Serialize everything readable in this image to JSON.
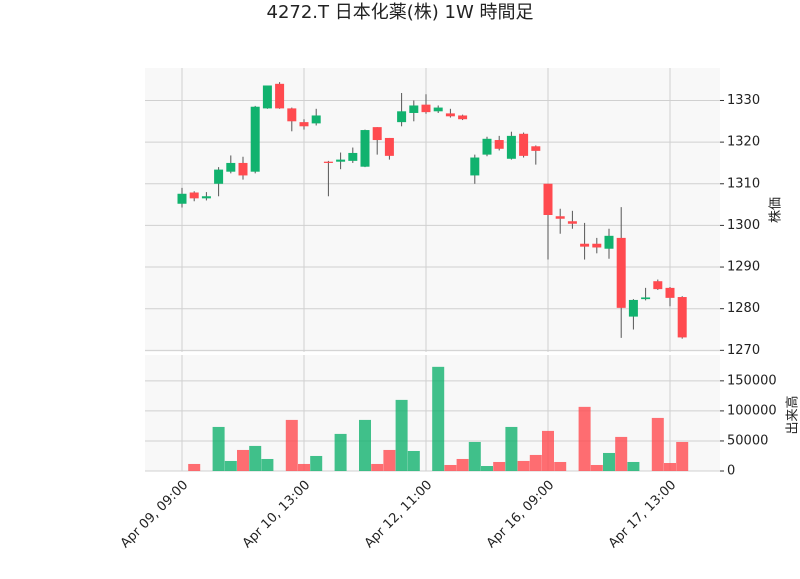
{
  "chart_data": {
    "type": "candlestick",
    "title": "4272.T 日本化薬(株) 1W 時間足",
    "categories": [
      "Apr 09, 09:00",
      null,
      null,
      null,
      null,
      null,
      null,
      null,
      null,
      null,
      "Apr 10, 13:00",
      null,
      null,
      null,
      null,
      null,
      null,
      null,
      null,
      null,
      "Apr 12, 11:00",
      null,
      null,
      null,
      null,
      null,
      null,
      null,
      null,
      null,
      "Apr 16, 09:00",
      null,
      null,
      null,
      null,
      null,
      null,
      null,
      null,
      null,
      "Apr 17, 13:00",
      null
    ],
    "open": [
      1305.2,
      1307.9,
      1306.5,
      1310,
      1312.9,
      1315,
      1312.9,
      1328.1,
      1334,
      1328.1,
      1324.8,
      1324.5,
      1315.3,
      1315.3,
      1315.5,
      1314.1,
      1323.6,
      1321,
      1324.8,
      1327,
      1329,
      1327.4,
      1326.9,
      1326.4,
      1312,
      1317,
      1320.5,
      1316,
      1322,
      1319,
      1310,
      1302.2,
      1301,
      1295.6,
      1295.6,
      1294.4,
      1297,
      1278.1,
      1282.3,
      1286.6,
      1285,
      1282.8
    ],
    "high": [
      1309,
      1308.2,
      1308,
      1314,
      1316.8,
      1316.5,
      1328.7,
      1333.6,
      1334.4,
      1328.3,
      1325.5,
      1328,
      1315.5,
      1317.5,
      1318.7,
      1323,
      1323.6,
      1321,
      1331.8,
      1330,
      1331.5,
      1328.8,
      1328,
      1326.6,
      1317,
      1321.3,
      1321.5,
      1322.5,
      1322.3,
      1319.2,
      1310,
      1304,
      1303.5,
      1300.6,
      1297,
      1299.2,
      1304.4,
      1282.3,
      1285,
      1287,
      1285.2,
      1283
    ],
    "low": [
      1304.3,
      1305.8,
      1306,
      1307,
      1312.5,
      1311,
      1312.5,
      1328,
      1328,
      1322.6,
      1323,
      1324,
      1307,
      1313.5,
      1315,
      1314,
      1317,
      1315.8,
      1323.8,
      1325,
      1326.8,
      1327,
      1325.9,
      1325.3,
      1310,
      1316.6,
      1318,
      1315.8,
      1316.3,
      1314.6,
      1291.8,
      1298,
      1299.2,
      1291.8,
      1293.3,
      1292,
      1273,
      1275,
      1282,
      1284.5,
      1280.6,
      1272.8
    ],
    "close": [
      1307.6,
      1306.5,
      1307,
      1313.4,
      1315,
      1312,
      1328.5,
      1333.6,
      1328.1,
      1325,
      1323.8,
      1326.4,
      1315,
      1315.8,
      1317.4,
      1322.9,
      1320.5,
      1316.7,
      1327.4,
      1328.8,
      1327.2,
      1328.3,
      1326.2,
      1325.5,
      1316.3,
      1320.8,
      1318.4,
      1321.5,
      1316.7,
      1317.9,
      1302.5,
      1301.6,
      1300.4,
      1294.9,
      1294.7,
      1297.5,
      1280.2,
      1282.1,
      1282.7,
      1284.7,
      1282.6,
      1273.1
    ],
    "volume": [
      0,
      11700,
      0,
      73300,
      16700,
      35000,
      41700,
      20000,
      0,
      85000,
      11700,
      25000,
      0,
      61700,
      0,
      85000,
      11700,
      35000,
      118300,
      33300,
      0,
      173300,
      10000,
      20000,
      48300,
      8300,
      15000,
      73300,
      16700,
      26700,
      66700,
      15000,
      0,
      106700,
      10000,
      30000,
      56700,
      15000,
      0,
      88300,
      13300,
      48300
    ],
    "up_color": "#11b26e",
    "down_color": "#ff4a4f",
    "ylabel": "株価",
    "ylim": [
      1269.6,
      1337.8
    ],
    "yticks": [
      1270,
      1280,
      1290,
      1300,
      1310,
      1320,
      1330
    ],
    "volume_label": "出来高",
    "volume_ylim": [
      0,
      193000
    ],
    "volume_yticks": [
      0,
      50000,
      100000,
      150000
    ],
    "grid": true
  }
}
